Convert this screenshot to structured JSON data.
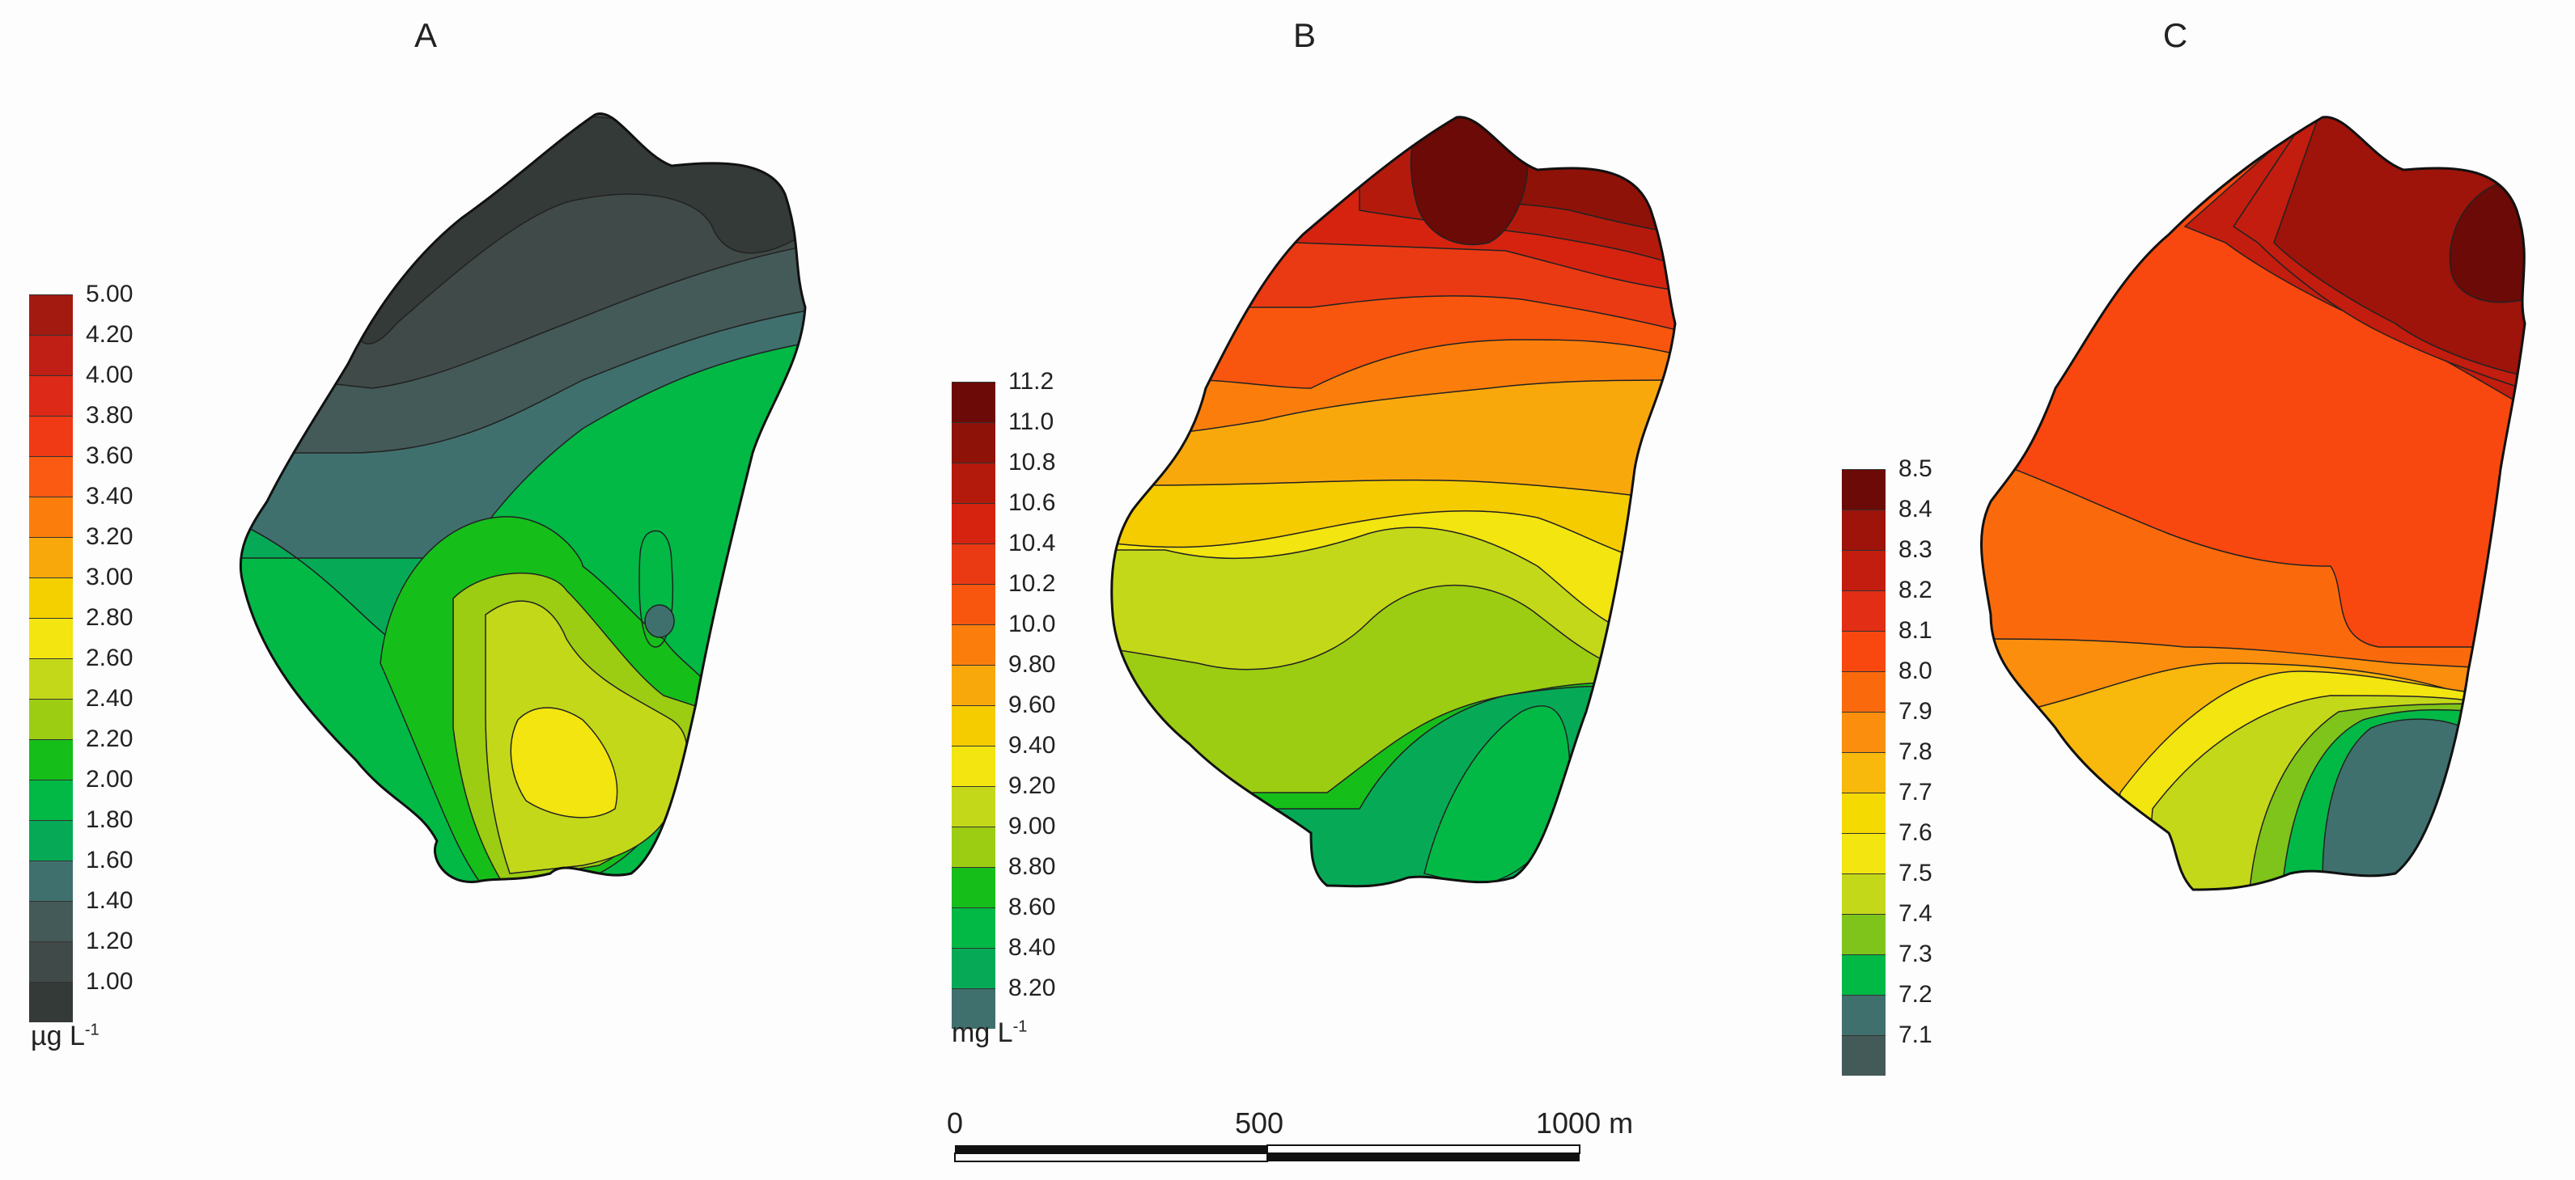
{
  "panels": {
    "a": {
      "title": "A",
      "unit_main": "µg L",
      "unit_sup": "-1",
      "legend_labels": [
        "5.00",
        "4.20",
        "4.00",
        "3.80",
        "3.60",
        "3.40",
        "3.20",
        "3.00",
        "2.80",
        "2.60",
        "2.40",
        "2.20",
        "2.00",
        "1.80",
        "1.60",
        "1.40",
        "1.20",
        "1.00"
      ],
      "legend_colors": [
        "#a31a10",
        "#bf1f14",
        "#dd2a18",
        "#f03a16",
        "#fa5a12",
        "#fb7e0c",
        "#f9a80c",
        "#f4d000",
        "#f2e510",
        "#c4d81a",
        "#9ccd12",
        "#16be1a",
        "#02b946",
        "#06aa56",
        "#3f706e",
        "#445a58",
        "#404a48",
        "#343a38"
      ]
    },
    "b": {
      "title": "B",
      "unit_main": "mg L",
      "unit_sup": "-1",
      "legend_labels": [
        "11.2",
        "11.0",
        "10.8",
        "10.6",
        "10.4",
        "10.2",
        "10.0",
        "9.80",
        "9.60",
        "9.40",
        "9.20",
        "9.00",
        "8.80",
        "8.60",
        "8.40",
        "8.20"
      ],
      "legend_colors": [
        "#6b0a06",
        "#8e1208",
        "#b41a0c",
        "#d5230f",
        "#ea3a14",
        "#f8560e",
        "#fb7e0c",
        "#f9a80c",
        "#f5cc00",
        "#f2e510",
        "#c4d81a",
        "#9ccd12",
        "#16be1a",
        "#02b946",
        "#06aa56",
        "#3f706e"
      ]
    },
    "c": {
      "title": "C",
      "legend_labels": [
        "8.5",
        "8.4",
        "8.3",
        "8.2",
        "8.1",
        "8.0",
        "7.9",
        "7.8",
        "7.7",
        "7.6",
        "7.5",
        "7.4",
        "7.3",
        "7.2",
        "7.1"
      ],
      "legend_colors": [
        "#6b0a06",
        "#9e130a",
        "#c21d0e",
        "#e22e14",
        "#f8480f",
        "#fa6a0c",
        "#fb8e0c",
        "#f9b80c",
        "#f4da00",
        "#f2e510",
        "#c4d81a",
        "#7fc41a",
        "#02b946",
        "#3f706e",
        "#445a58"
      ]
    },
    "scale_bar": {
      "labels": [
        "0",
        "500",
        "1000 m"
      ]
    }
  },
  "colors": {
    "background": "#fdfdfd",
    "outline": "#111111"
  }
}
